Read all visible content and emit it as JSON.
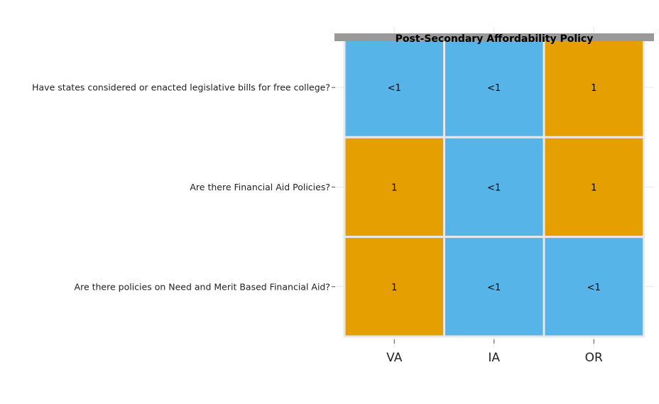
{
  "chart_data": {
    "type": "heatmap",
    "title": "Post-Secondary Affordability Policy",
    "xlabel": "",
    "ylabel": "",
    "columns": [
      "VA",
      "IA",
      "OR"
    ],
    "rows": [
      "Have states considered or enacted legislative bills for free college?",
      "Are there Financial Aid Policies?",
      "Are there policies on Need and Merit Based Financial Aid?"
    ],
    "cells": [
      [
        "<1",
        "<1",
        "1"
      ],
      [
        "1",
        "<1",
        "1"
      ],
      [
        "1",
        "<1",
        "<1"
      ]
    ],
    "colors": {
      "<1": "#56b4e9",
      "1": "#e69f00"
    },
    "grid": true
  }
}
